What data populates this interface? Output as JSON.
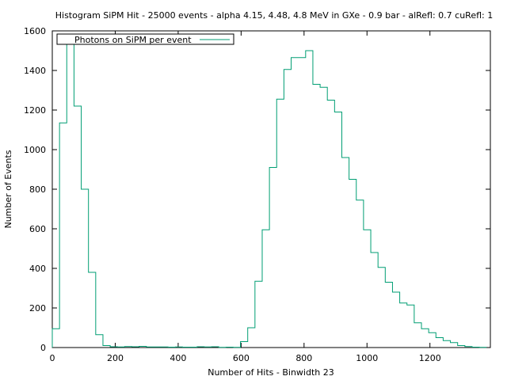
{
  "chart_data": {
    "type": "histogram",
    "title": "Histogram SiPM Hit - 25000 events - alpha 4.15, 4.48, 4.8 MeV  in GXe - 0.9 bar - alRefl: 0.7 cuRefl: 1",
    "xlabel": "Number of Hits - Binwidth 23",
    "ylabel": "Number of Events",
    "legend": {
      "label": "Photons on SiPM per event",
      "position": "top-left"
    },
    "xlim": [
      0,
      1392
    ],
    "ylim": [
      0,
      1600
    ],
    "x_ticks": [
      0,
      200,
      400,
      600,
      800,
      1000,
      1200
    ],
    "y_ticks": [
      0,
      200,
      400,
      600,
      800,
      1000,
      1200,
      1400,
      1600
    ],
    "grid": false,
    "bin_width": 23,
    "bin_start": 0,
    "line_color": "#009e73",
    "counts": [
      95,
      1135,
      1580,
      1220,
      800,
      380,
      65,
      10,
      4,
      3,
      5,
      4,
      6,
      3,
      3,
      3,
      2,
      3,
      2,
      2,
      4,
      3,
      4,
      1,
      2,
      1,
      30,
      100,
      335,
      595,
      910,
      1255,
      1405,
      1465,
      1465,
      1500,
      1330,
      1315,
      1250,
      1190,
      960,
      850,
      745,
      595,
      480,
      405,
      330,
      280,
      225,
      215,
      125,
      95,
      75,
      50,
      35,
      25,
      10,
      5,
      2,
      1
    ]
  }
}
